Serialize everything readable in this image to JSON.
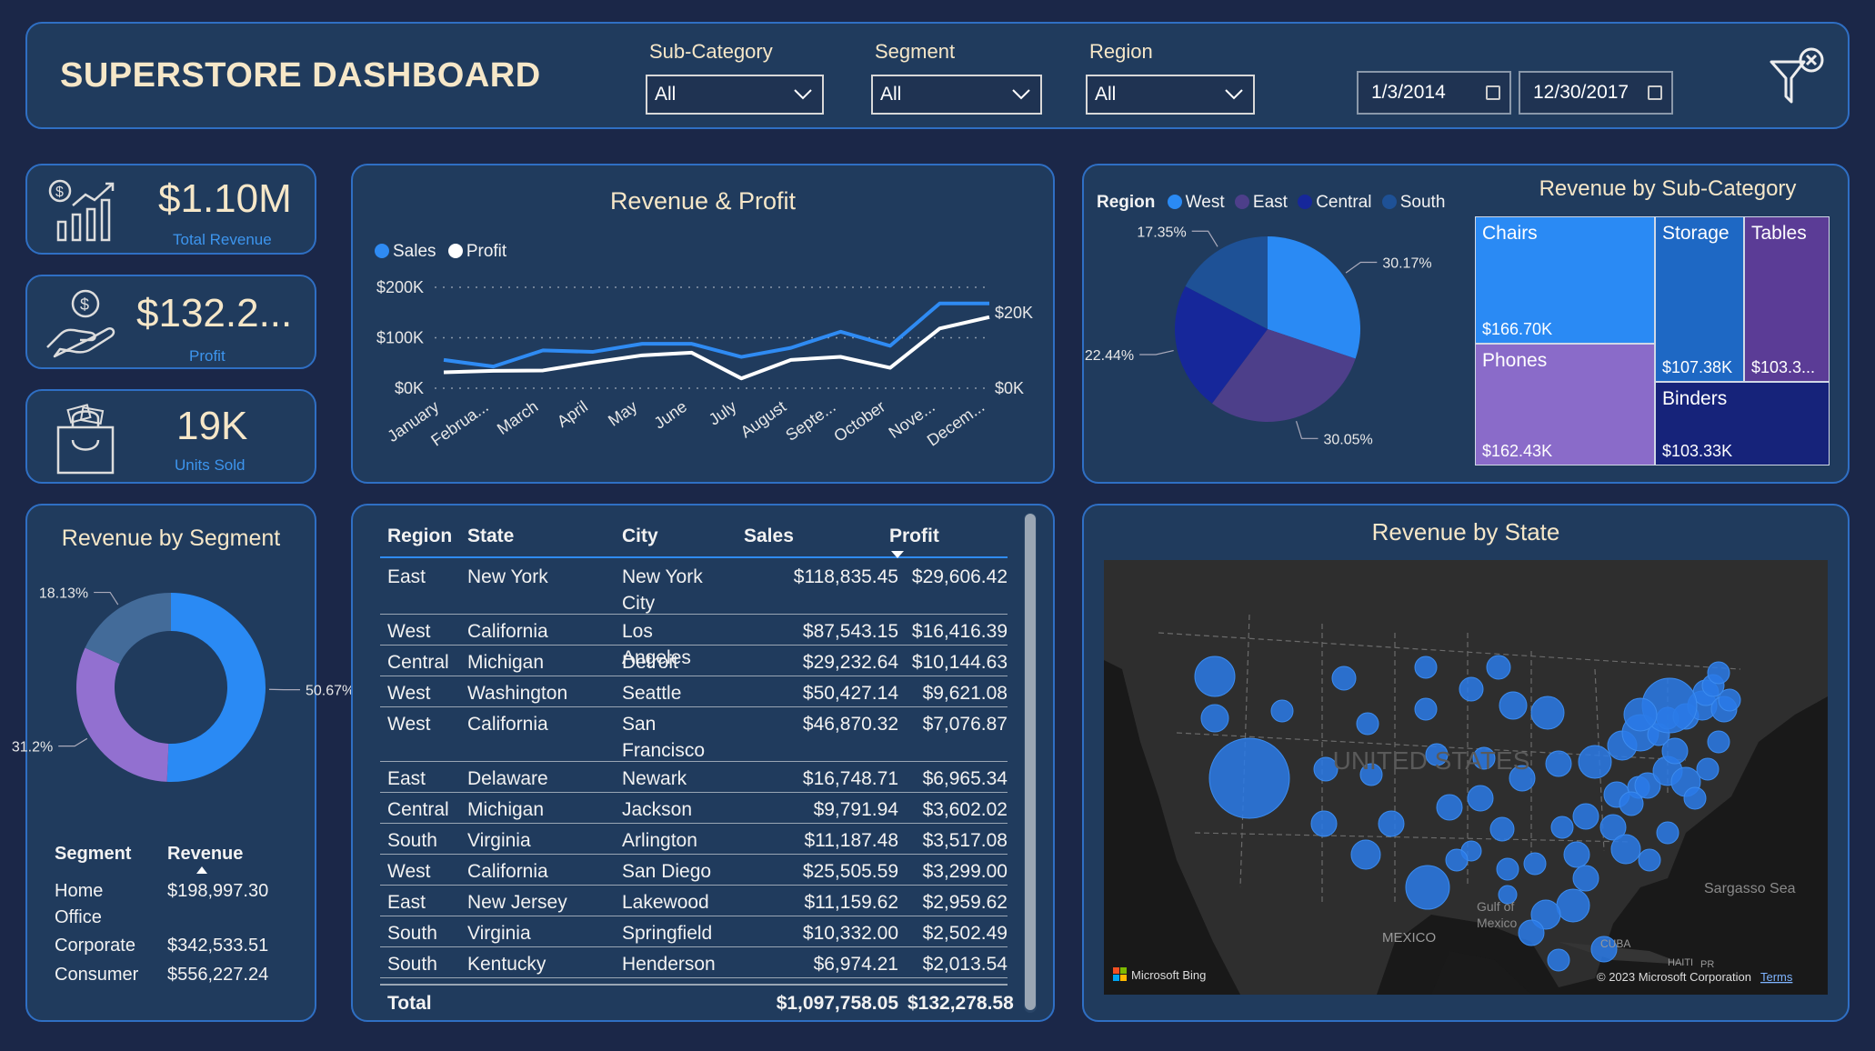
{
  "header": {
    "title": "SUPERSTORE DASHBOARD",
    "filters": [
      {
        "label": "Sub-Category",
        "value": "All"
      },
      {
        "label": "Segment",
        "value": "All"
      },
      {
        "label": "Region",
        "value": "All"
      }
    ],
    "date_start": "1/3/2014",
    "date_end": "12/30/2017",
    "clear_filter_icon": "filter-clear-icon"
  },
  "kpis": [
    {
      "value": "$1.10M",
      "label": "Total Revenue",
      "icon": "revenue-chart-icon"
    },
    {
      "value": "$132.2...",
      "label": "Profit",
      "icon": "money-hand-icon"
    },
    {
      "value": "19K",
      "label": "Units Sold",
      "icon": "shopping-bag-icon"
    }
  ],
  "line_panel": {
    "title": "Revenue & Profit",
    "legend": [
      "Sales",
      "Profit"
    ],
    "colors": {
      "sales": "#2f8bf3",
      "profit": "#ffffff"
    }
  },
  "chart_data": [
    {
      "type": "line",
      "title": "Revenue & Profit",
      "categories": [
        "January",
        "Februa...",
        "March",
        "April",
        "May",
        "June",
        "July",
        "August",
        "Septe...",
        "October",
        "Nove...",
        "Decem..."
      ],
      "series": [
        {
          "name": "Sales",
          "axis": "left",
          "values": [
            56000,
            43000,
            75000,
            72000,
            88000,
            88000,
            62000,
            80000,
            112000,
            84000,
            168000,
            168000
          ]
        },
        {
          "name": "Profit",
          "axis": "right",
          "values": [
            4200,
            4600,
            4700,
            6800,
            8700,
            9400,
            2600,
            7500,
            8300,
            5400,
            15800,
            18800
          ]
        }
      ],
      "y_left_ticks": [
        "$200K",
        "$100K",
        "$0K"
      ],
      "y_left_range": [
        0,
        200000
      ],
      "y_right_ticks": [
        "$20K",
        "$0K"
      ],
      "y_right_range": [
        0,
        26700
      ],
      "grid": true
    },
    {
      "type": "pie",
      "legend_title": "Region",
      "categories": [
        "West",
        "East",
        "Central",
        "South"
      ],
      "values": [
        30.17,
        30.05,
        22.44,
        17.35
      ],
      "labels": [
        "30.17%",
        "30.05%",
        "22.44%",
        "17.35%"
      ],
      "colors": [
        "#2a8af4",
        "#4d3f8a",
        "#16279a",
        "#1e5196"
      ]
    },
    {
      "type": "treemap",
      "title": "Revenue by Sub-Category",
      "categories": [
        "Chairs",
        "Phones",
        "Storage",
        "Tables",
        "Binders"
      ],
      "values": [
        "$166.70K",
        "$162.43K",
        "$107.38K",
        "$103.3...",
        "$103.33K"
      ],
      "colors": [
        "#2a8af4",
        "#8a6bc9",
        "#1e68c4",
        "#5b3c96",
        "#16237a"
      ]
    },
    {
      "type": "donut",
      "title": "Revenue by Segment",
      "categories": [
        "Consumer",
        "Corporate",
        "Home Office"
      ],
      "values": [
        50.67,
        31.2,
        18.13
      ],
      "labels": [
        "50.67%",
        "31.2%",
        "18.13%"
      ],
      "colors": [
        "#2a8af4",
        "#9270d0",
        "#436b99"
      ]
    }
  ],
  "segment_table": {
    "headers": [
      "Segment",
      "Revenue"
    ],
    "rows": [
      [
        "Home Office",
        "$198,997.30"
      ],
      [
        "Corporate",
        "$342,533.51"
      ],
      [
        "Consumer",
        "$556,227.24"
      ]
    ]
  },
  "state_table": {
    "headers": [
      "Region",
      "State",
      "City",
      "Sales",
      "Profit"
    ],
    "rows": [
      [
        "East",
        "New York",
        "New York City",
        "$118,835.45",
        "$29,606.42"
      ],
      [
        "West",
        "California",
        "Los Angeles",
        "$87,543.15",
        "$16,416.39"
      ],
      [
        "Central",
        "Michigan",
        "Detroit",
        "$29,232.64",
        "$10,144.63"
      ],
      [
        "West",
        "Washington",
        "Seattle",
        "$50,427.14",
        "$9,621.08"
      ],
      [
        "West",
        "California",
        "San Francisco",
        "$46,870.32",
        "$7,076.87"
      ],
      [
        "East",
        "Delaware",
        "Newark",
        "$16,748.71",
        "$6,965.34"
      ],
      [
        "Central",
        "Michigan",
        "Jackson",
        "$9,791.94",
        "$3,602.02"
      ],
      [
        "South",
        "Virginia",
        "Arlington",
        "$11,187.48",
        "$3,517.08"
      ],
      [
        "West",
        "California",
        "San Diego",
        "$25,505.59",
        "$3,299.00"
      ],
      [
        "East",
        "New Jersey",
        "Lakewood",
        "$11,159.62",
        "$2,959.62"
      ],
      [
        "South",
        "Virginia",
        "Springfield",
        "$10,332.00",
        "$2,502.49"
      ],
      [
        "South",
        "Kentucky",
        "Henderson",
        "$6,974.21",
        "$2,013.54"
      ]
    ],
    "total": [
      "Total",
      "$1,097,758.05",
      "$132,278.58"
    ]
  },
  "map": {
    "title": "Revenue by State",
    "country_label": "UNITED STATES",
    "labels": [
      "MEXICO",
      "Gulf of",
      "Mexico",
      "Sargasso Sea",
      "CUBA",
      "HAITI",
      "PR"
    ],
    "attribution": "Microsoft Bing",
    "copyright": "© 2023 Microsoft Corporation",
    "terms": "Terms"
  }
}
